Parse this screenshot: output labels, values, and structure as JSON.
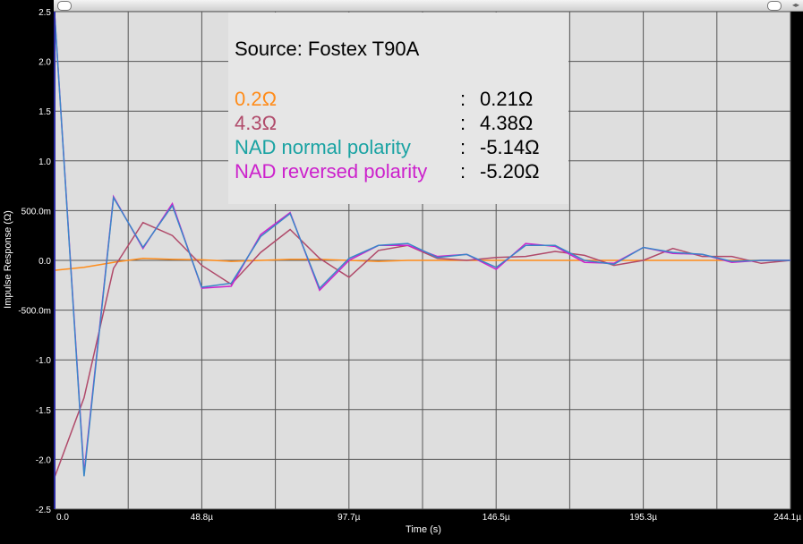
{
  "chart_data": {
    "type": "line",
    "title": "Source: Fostex T90A",
    "xlabel": "Time (s)",
    "ylabel": "Impulse Response (Ω)",
    "xlim": [
      0,
      244.1
    ],
    "ylim": [
      -2.5,
      2.5
    ],
    "x_ticks": [
      "0.0",
      "48.8µ",
      "97.7µ",
      "146.5µ",
      "195.3µ",
      "244.1µ"
    ],
    "y_ticks": [
      "2.5",
      "2.0",
      "1.5",
      "1.0",
      "500.0m",
      "0.0",
      "-500.0m",
      "-1.0",
      "-1.5",
      "-2.0",
      "-2.5"
    ],
    "grid": true,
    "legend_position": "top-center",
    "x": [
      0,
      9.766,
      19.531,
      29.297,
      39.063,
      48.828,
      58.594,
      68.359,
      78.125,
      87.891,
      97.656,
      107.422,
      117.188,
      126.953,
      136.719,
      146.484,
      156.25,
      166.016,
      175.781,
      185.547,
      195.313,
      205.078,
      214.844,
      224.609,
      234.375,
      244.141
    ],
    "series": [
      {
        "name": "0.2Ω",
        "value": "0.21Ω",
        "color": "#ff8c1a",
        "values": [
          -0.1,
          -0.07,
          -0.02,
          0.02,
          0.01,
          0.005,
          -0.01,
          0.0,
          0.01,
          0.01,
          0.0,
          -0.01,
          0.0,
          0.0,
          0.0,
          0.0,
          0.0,
          0.0,
          0.0,
          0.0,
          0.0,
          0.0,
          0.0,
          0.0,
          0.0,
          0.0
        ]
      },
      {
        "name": "4.3Ω",
        "value": "4.38Ω",
        "color": "#b04a6a",
        "values": [
          -2.18,
          -1.38,
          -0.08,
          0.38,
          0.25,
          -0.05,
          -0.24,
          0.08,
          0.31,
          0.02,
          -0.17,
          0.1,
          0.15,
          0.02,
          0.0,
          0.03,
          0.04,
          0.09,
          0.05,
          -0.05,
          0.0,
          0.12,
          0.04,
          0.04,
          -0.03,
          0.0
        ]
      },
      {
        "name": "NAD normal polarity",
        "value": "-5.14Ω",
        "color": "#1aa3a3",
        "values": [
          2.48,
          -2.14,
          0.64,
          0.12,
          0.57,
          -0.28,
          -0.26,
          0.26,
          0.48,
          -0.3,
          0.0,
          0.15,
          0.15,
          0.04,
          0.06,
          -0.09,
          0.17,
          0.14,
          -0.02,
          -0.03,
          0.13,
          0.07,
          0.06,
          -0.02,
          0.0,
          0.0
        ]
      },
      {
        "name": "NAD reversed polarity",
        "value": "-5.20Ω",
        "color": "#cc22cc",
        "values": [
          2.48,
          -2.17,
          0.63,
          0.13,
          0.55,
          -0.27,
          -0.23,
          0.24,
          0.47,
          -0.28,
          0.02,
          0.15,
          0.17,
          0.03,
          0.06,
          -0.07,
          0.15,
          0.15,
          0.0,
          -0.04,
          0.13,
          0.08,
          0.06,
          -0.01,
          0.0,
          0.0
        ]
      }
    ],
    "series_draw_colors": [
      "#ff8c1a",
      "#b04a6a",
      "#cc22cc",
      "#3a86c8"
    ]
  }
}
